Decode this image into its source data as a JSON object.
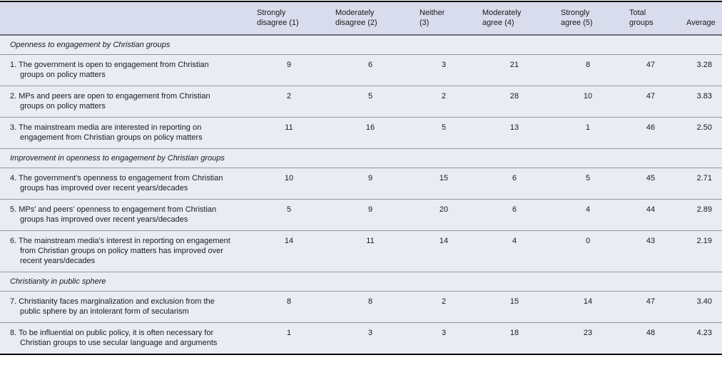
{
  "colors": {
    "header_bg": "#d8dcec",
    "body_bg": "#eaecf4",
    "rule_gray": "#95959e",
    "rule_strong": "#6f6f7a",
    "rule_black": "#000000"
  },
  "header": {
    "cols": [
      {
        "lines": [
          "Strongly",
          "disagree (1)"
        ]
      },
      {
        "lines": [
          "Moderately",
          "disagree (2)"
        ]
      },
      {
        "lines": [
          "Neither",
          "(3)"
        ]
      },
      {
        "lines": [
          "Moderately",
          "agree (4)"
        ]
      },
      {
        "lines": [
          "Strongly",
          "agree (5)"
        ]
      },
      {
        "lines": [
          "Total",
          "groups"
        ]
      },
      {
        "lines": [
          "Average"
        ]
      }
    ]
  },
  "rows": [
    {
      "type": "section",
      "label": "Openness to engagement by Christian groups"
    },
    {
      "type": "item",
      "label": "1. The government is open to engagement from Christian groups on policy matters",
      "values": [
        "9",
        "6",
        "3",
        "21",
        "8",
        "47",
        "3.28"
      ]
    },
    {
      "type": "item",
      "label": "2. MPs and peers are open to engagement from Christian groups on policy matters",
      "values": [
        "2",
        "5",
        "2",
        "28",
        "10",
        "47",
        "3.83"
      ]
    },
    {
      "type": "item",
      "label": "3. The mainstream media are interested in reporting on engagement from Christian groups on policy matters",
      "values": [
        "11",
        "16",
        "5",
        "13",
        "1",
        "46",
        "2.50"
      ]
    },
    {
      "type": "section",
      "label": "Improvement in openness to engagement by Christian groups"
    },
    {
      "type": "item",
      "label": "4. The government's openness to engagement from Christian groups has improved over recent years/decades",
      "values": [
        "10",
        "9",
        "15",
        "6",
        "5",
        "45",
        "2.71"
      ]
    },
    {
      "type": "item",
      "label": "5. MPs' and peers' openness to engagement from Christian groups has improved over recent years/decades",
      "values": [
        "5",
        "9",
        "20",
        "6",
        "4",
        "44",
        "2.89"
      ]
    },
    {
      "type": "item",
      "label": "6. The mainstream media's interest in reporting on engagement from Christian groups on policy matters has improved over recent years/decades",
      "values": [
        "14",
        "11",
        "14",
        "4",
        "0",
        "43",
        "2.19"
      ]
    },
    {
      "type": "section",
      "label": "Christianity in public sphere"
    },
    {
      "type": "item",
      "label": "7. Christianity faces marginalization and exclusion from the public sphere by an intolerant form of secularism",
      "values": [
        "8",
        "8",
        "2",
        "15",
        "14",
        "47",
        "3.40"
      ]
    },
    {
      "type": "item",
      "label": "8. To be influential on public policy, it is often necessary for Christian groups to use secular language and arguments",
      "values": [
        "1",
        "3",
        "3",
        "18",
        "23",
        "48",
        "4.23"
      ]
    }
  ]
}
